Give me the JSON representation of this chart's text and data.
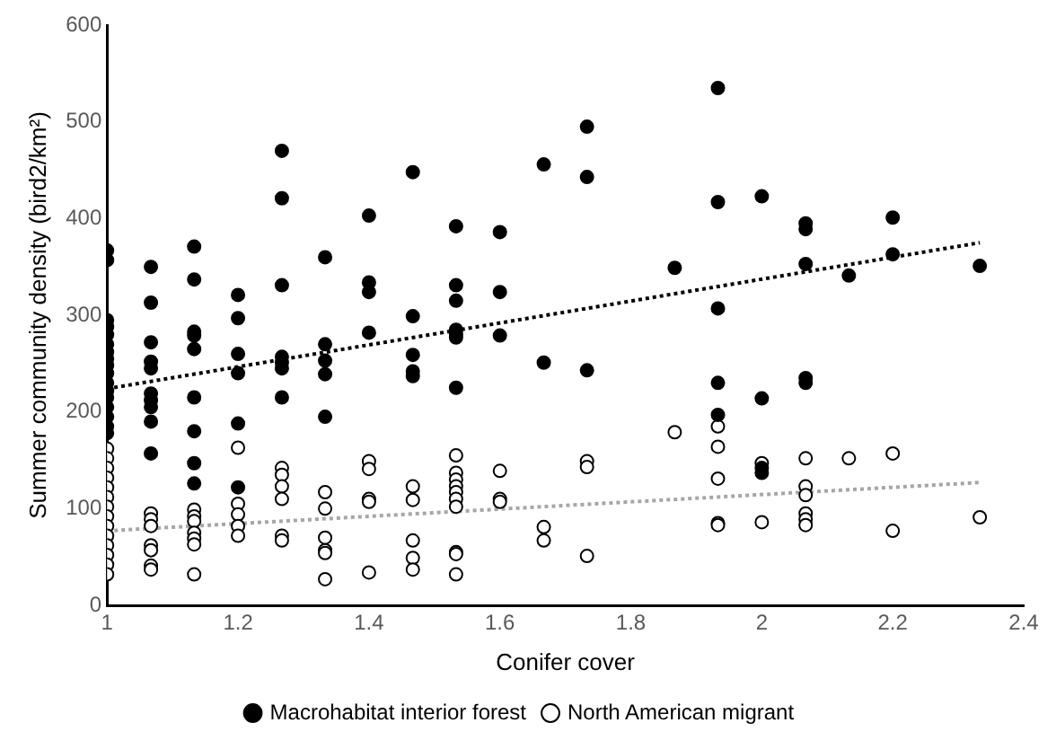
{
  "chart_data": {
    "type": "scatter",
    "xlabel": "Conifer cover",
    "ylabel": "Summer community density (bird2/km²)",
    "xlim": [
      1,
      2.4
    ],
    "xticks": [
      1,
      1.2,
      1.4,
      1.6,
      1.8,
      2,
      2.2,
      2.4
    ],
    "ylim": [
      0,
      600
    ],
    "yticks": [
      0,
      100,
      200,
      300,
      400,
      500,
      600
    ],
    "grid": false,
    "legend": "bottom",
    "marker": "circle",
    "series": [
      {
        "name": "Macrohabitat interior forest",
        "color": "#000000",
        "x": [
          1,
          1,
          1,
          1,
          1,
          1,
          1,
          1,
          1,
          1,
          1,
          1,
          1,
          1,
          1,
          1,
          1,
          1.067,
          1.067,
          1.067,
          1.067,
          1.067,
          1.067,
          1.067,
          1.067,
          1.067,
          1.067,
          1.133,
          1.133,
          1.133,
          1.133,
          1.133,
          1.133,
          1.133,
          1.133,
          1.133,
          1.2,
          1.2,
          1.2,
          1.2,
          1.2,
          1.2,
          1.267,
          1.267,
          1.267,
          1.267,
          1.267,
          1.267,
          1.267,
          1.333,
          1.333,
          1.333,
          1.333,
          1.333,
          1.4,
          1.4,
          1.4,
          1.4,
          1.467,
          1.467,
          1.467,
          1.467,
          1.467,
          1.533,
          1.533,
          1.533,
          1.533,
          1.533,
          1.533,
          1.533,
          1.6,
          1.6,
          1.6,
          1.667,
          1.667,
          1.733,
          1.733,
          1.733,
          1.867,
          1.933,
          1.933,
          1.933,
          1.933,
          1.933,
          2,
          2,
          2,
          2,
          2.067,
          2.067,
          2.067,
          2.067,
          2.067,
          2.133,
          2.2,
          2.2,
          2.333
        ],
        "values": [
          367,
          357,
          295,
          288,
          280,
          270,
          262,
          255,
          248,
          240,
          230,
          222,
          215,
          205,
          195,
          185,
          178,
          350,
          313,
          272,
          252,
          245,
          219,
          212,
          205,
          190,
          157,
          371,
          337,
          283,
          279,
          265,
          215,
          180,
          147,
          126,
          321,
          297,
          260,
          240,
          188,
          122,
          470,
          421,
          331,
          257,
          251,
          245,
          215,
          360,
          270,
          253,
          239,
          195,
          403,
          334,
          324,
          282,
          448,
          299,
          259,
          242,
          237,
          392,
          331,
          315,
          285,
          281,
          277,
          225,
          386,
          324,
          279,
          456,
          251,
          495,
          443,
          243,
          349,
          535,
          417,
          307,
          230,
          197,
          423,
          214,
          142,
          137,
          395,
          389,
          353,
          235,
          230,
          341,
          401,
          363,
          351
        ]
      },
      {
        "name": "North American migrant",
        "color": "#ffffff",
        "x": [
          1,
          1,
          1,
          1,
          1,
          1,
          1,
          1,
          1,
          1,
          1,
          1,
          1,
          1,
          1.067,
          1.067,
          1.067,
          1.067,
          1.067,
          1.067,
          1.067,
          1.133,
          1.133,
          1.133,
          1.133,
          1.133,
          1.133,
          1.133,
          1.2,
          1.2,
          1.2,
          1.2,
          1.2,
          1.267,
          1.267,
          1.267,
          1.267,
          1.267,
          1.267,
          1.333,
          1.333,
          1.333,
          1.333,
          1.333,
          1.333,
          1.4,
          1.4,
          1.4,
          1.4,
          1.4,
          1.467,
          1.467,
          1.467,
          1.467,
          1.467,
          1.533,
          1.533,
          1.533,
          1.533,
          1.533,
          1.533,
          1.533,
          1.533,
          1.533,
          1.533,
          1.6,
          1.6,
          1.6,
          1.667,
          1.667,
          1.733,
          1.733,
          1.733,
          1.867,
          1.933,
          1.933,
          1.933,
          1.933,
          1.933,
          2,
          2,
          2.067,
          2.067,
          2.067,
          2.067,
          2.067,
          2.067,
          2.133,
          2.2,
          2.2,
          2.333
        ],
        "values": [
          162,
          152,
          142,
          132,
          122,
          112,
          102,
          92,
          82,
          72,
          62,
          52,
          42,
          32,
          95,
          89,
          82,
          62,
          57,
          41,
          37,
          99,
          92,
          87,
          75,
          69,
          63,
          32,
          163,
          105,
          94,
          82,
          72,
          142,
          135,
          123,
          110,
          72,
          67,
          117,
          100,
          70,
          57,
          54,
          27,
          149,
          141,
          110,
          107,
          34,
          123,
          109,
          67,
          49,
          37,
          155,
          137,
          130,
          123,
          117,
          110,
          102,
          55,
          53,
          32,
          139,
          110,
          107,
          81,
          67,
          149,
          143,
          51,
          179,
          185,
          164,
          131,
          85,
          83,
          147,
          86,
          152,
          123,
          114,
          95,
          89,
          83,
          152,
          157,
          77,
          91
        ]
      },
      {
        "type": "line",
        "color": "#000000",
        "line_style": "dotted",
        "marker": "none",
        "x": [
          1,
          2.333
        ],
        "values": [
          224,
          375
        ]
      },
      {
        "type": "line",
        "color": "#a6a6a6",
        "line_style": "dotted",
        "marker": "none",
        "x": [
          1,
          2.333
        ],
        "values": [
          77,
          127
        ]
      }
    ]
  }
}
